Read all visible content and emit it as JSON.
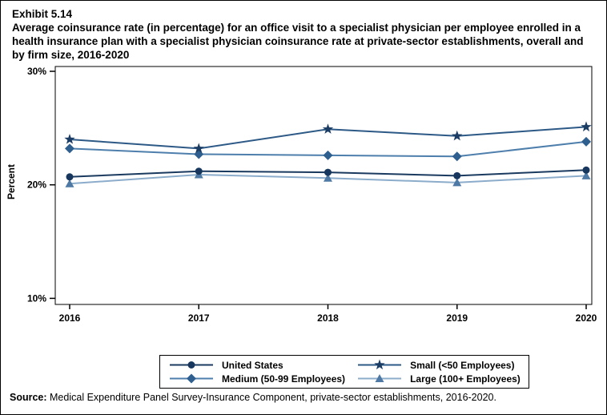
{
  "header": {
    "exhibit_label": "Exhibit 5.14",
    "title": "Average coinsurance rate (in percentage) for an office visit to a specialist physician per employee enrolled in a health insurance plan with a specialist physician coinsurance rate at private-sector establishments, overall and by firm size, 2016-2020"
  },
  "chart_data": {
    "type": "line",
    "x": [
      "2016",
      "2017",
      "2018",
      "2019",
      "2020"
    ],
    "xlabel": "",
    "ylabel": "Percent",
    "ylim": [
      10,
      30
    ],
    "yticks": [
      {
        "value": 30,
        "label": "30%"
      },
      {
        "value": 20,
        "label": "20%"
      },
      {
        "value": 10,
        "label": "10%"
      }
    ],
    "grid": false,
    "legend_position": "bottom-box",
    "series": [
      {
        "name": "United States",
        "marker": "circle",
        "color": "#17375E",
        "line_color": "#1B3A5F",
        "values": [
          20.7,
          21.2,
          21.1,
          20.8,
          21.3
        ]
      },
      {
        "name": "Medium (50-99 Employees)",
        "marker": "diamond",
        "color": "#2E5F8E",
        "line_color": "#4E7FAC",
        "values": [
          23.2,
          22.7,
          22.6,
          22.5,
          23.8
        ]
      },
      {
        "name": "Small (<50 Employees)",
        "marker": "star",
        "color": "#1B3C63",
        "line_color": "#2D5986",
        "values": [
          24.0,
          23.2,
          24.9,
          24.3,
          25.1
        ]
      },
      {
        "name": "Large (100+ Employees)",
        "marker": "triangle",
        "color": "#4E79A4",
        "line_color": "#8CACCB",
        "values": [
          20.1,
          20.9,
          20.6,
          20.2,
          20.8
        ]
      }
    ]
  },
  "footer": {
    "source_label": "Source:",
    "source_text": " Medical Expenditure Panel Survey-Insurance Component, private-sector establishments, 2016-2020."
  }
}
